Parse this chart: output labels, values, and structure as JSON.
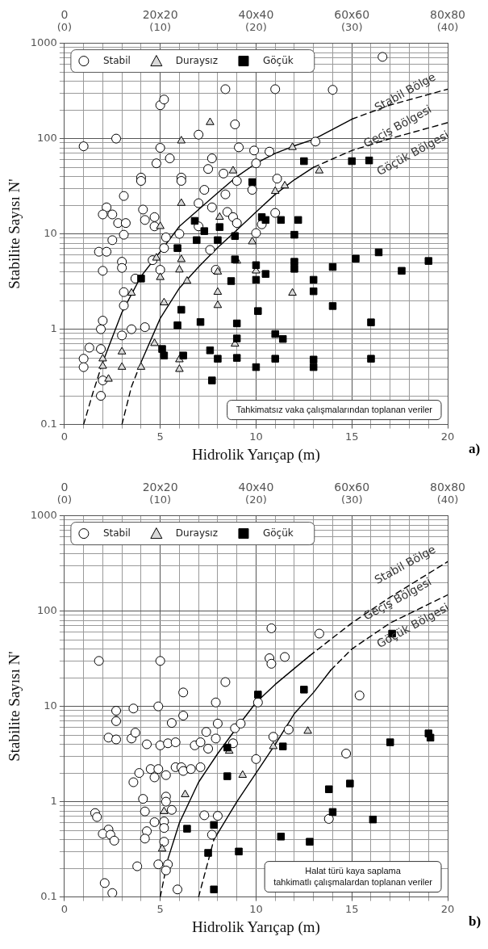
{
  "chart_data": [
    {
      "type": "scatter",
      "xlabel": "Hidrolik Yarıçap (m)",
      "ylabel": "Stabilite Sayısı N'",
      "log": "y",
      "grid": true,
      "legend": "top left",
      "xlim": [
        0,
        20
      ],
      "xticks": [
        0,
        {
          "value": 1,
          "label": null
        },
        {
          "value": 2,
          "label": null
        },
        {
          "value": 3,
          "label": null
        },
        {
          "value": 4,
          "label": null
        },
        5,
        {
          "value": 6,
          "label": null
        },
        {
          "value": 7,
          "label": null
        },
        {
          "value": 8,
          "label": null
        },
        {
          "value": 9,
          "label": null
        },
        10,
        {
          "value": 11,
          "label": null
        },
        {
          "value": 12,
          "label": null
        },
        {
          "value": 13,
          "label": null
        },
        {
          "value": 14,
          "label": null
        },
        15,
        {
          "value": 16,
          "label": null
        },
        {
          "value": 17,
          "label": null
        },
        {
          "value": 18,
          "label": null
        },
        {
          "value": 19,
          "label": null
        },
        20
      ],
      "x2lim": [
        0,
        40
      ],
      "x2ticks": [
        {
          "value": 0,
          "label": "(0)"
        },
        {
          "value": 10,
          "label": "(10)"
        },
        {
          "value": 20,
          "label": "(20)"
        },
        {
          "value": 30,
          "label": "(30)"
        },
        {
          "value": 40,
          "label": "(40)"
        }
      ],
      "ylim": [
        0.1,
        1000
      ],
      "yticks": [
        0.1,
        {
          "value": 0.2,
          "label": null
        },
        {
          "value": 0.3,
          "label": null
        },
        {
          "value": 0.4,
          "label": null
        },
        {
          "value": 0.5,
          "label": null
        },
        {
          "value": 0.6,
          "label": null
        },
        {
          "value": 0.7,
          "label": null
        },
        {
          "value": 0.8,
          "label": null
        },
        {
          "value": 0.9,
          "label": null
        },
        1,
        {
          "value": 2,
          "label": null
        },
        {
          "value": 3,
          "label": null
        },
        {
          "value": 4,
          "label": null
        },
        {
          "value": 5,
          "label": null
        },
        {
          "value": 6,
          "label": null
        },
        {
          "value": 7,
          "label": null
        },
        {
          "value": 8,
          "label": null
        },
        {
          "value": 9,
          "label": null
        },
        10,
        {
          "value": 20,
          "label": null
        },
        {
          "value": 30,
          "label": null
        },
        {
          "value": 40,
          "label": null
        },
        {
          "value": 50,
          "label": null
        },
        {
          "value": 60,
          "label": null
        },
        {
          "value": 70,
          "label": null
        },
        {
          "value": 80,
          "label": null
        },
        {
          "value": 90,
          "label": null
        },
        100,
        {
          "value": 200,
          "label": null
        },
        {
          "value": 300,
          "label": null
        },
        {
          "value": 400,
          "label": null
        },
        {
          "value": 500,
          "label": null
        },
        {
          "value": 600,
          "label": null
        },
        {
          "value": 700,
          "label": null
        },
        {
          "value": 800,
          "label": null
        },
        {
          "value": 900,
          "label": null
        },
        1000
      ],
      "series": [
        {
          "type": "line",
          "color": "#000000",
          "line_style": "dashed",
          "x": [
            1,
            1.5,
            2
          ],
          "values": [
            0.1,
            0.22,
            0.45
          ]
        },
        {
          "type": "line",
          "color": "#000000",
          "line_style": "solid",
          "x": [
            2,
            3,
            4,
            5,
            6,
            7,
            8,
            9,
            10,
            11,
            12,
            13,
            15
          ],
          "values": [
            0.45,
            1.5,
            3.6,
            6.5,
            12,
            18,
            27,
            40,
            55,
            70,
            84,
            98,
            160
          ]
        },
        {
          "type": "line",
          "color": "#000000",
          "line_style": "dashed",
          "x": [
            15,
            17,
            20
          ],
          "values": [
            160,
            225,
            330
          ]
        },
        {
          "type": "line",
          "color": "#000000",
          "line_style": "dashed",
          "x": [
            3,
            3.5,
            4
          ],
          "values": [
            0.1,
            0.25,
            0.45
          ]
        },
        {
          "type": "line",
          "color": "#000000",
          "line_style": "solid",
          "x": [
            4,
            5,
            6,
            7,
            8,
            9,
            10,
            11,
            12,
            13
          ],
          "values": [
            0.45,
            1.3,
            2.7,
            4.5,
            7.2,
            11,
            17,
            26,
            37,
            50
          ]
        },
        {
          "type": "line",
          "color": "#000000",
          "line_style": "dashed",
          "x": [
            13,
            15,
            17,
            20
          ],
          "values": [
            50,
            75,
            100,
            147
          ]
        },
        {
          "name": "Stabil",
          "marker": "circle",
          "color": "#ffffff",
          "x": [
            1.0,
            2.7,
            5.0,
            5.2,
            8.4,
            8.9,
            7.0,
            5.0,
            4.8,
            5.5,
            7.7,
            7.5,
            8.3,
            9.0,
            9.1,
            4.0,
            4.0,
            6.1,
            6.1,
            3.1,
            7.3,
            8.4,
            7.0,
            7.7,
            8.5,
            8.8,
            2.2,
            2.0,
            2.5,
            2.8,
            3.2,
            4.1,
            4.2,
            4.7,
            4.7,
            3.1,
            2.5,
            5.3,
            6.0,
            7.0,
            9.0,
            1.8,
            2.2,
            3.0,
            3.0,
            2.0,
            3.7,
            4.6,
            5.0,
            5.2,
            3.1,
            3.1,
            2.0,
            1.9,
            3.0,
            3.5,
            4.2,
            1.3,
            1.9,
            1.0,
            1.0,
            2.0,
            1.9,
            7.6,
            7.9,
            16.6,
            11.0,
            14.0,
            9.9,
            10.7,
            10.0,
            13.1,
            9.8,
            11.1,
            11.0,
            10.3,
            10.0
          ],
          "values": [
            83,
            100,
            224,
            257,
            330,
            141,
            110,
            80,
            55,
            62,
            62,
            48,
            43,
            36,
            81,
            39,
            36,
            39,
            36,
            25,
            29,
            26,
            21,
            19,
            17,
            15,
            19,
            16,
            16,
            13,
            13,
            18,
            14,
            15,
            12,
            9.8,
            8.6,
            9.2,
            10,
            12,
            13,
            6.5,
            6.5,
            5.1,
            4.4,
            4.1,
            3.4,
            5.3,
            4.2,
            7.1,
            2.45,
            1.77,
            1.23,
            1.0,
            0.86,
            1.0,
            1.05,
            0.64,
            0.62,
            0.49,
            0.4,
            0.29,
            0.2,
            6.8,
            4.2,
            720,
            330,
            325,
            75,
            73,
            55,
            93,
            29,
            38,
            16.6,
            12.6,
            10.2
          ]
        },
        {
          "name": "Duraysız",
          "marker": "triangle",
          "color": "#d9d9d9",
          "x": [
            4.8,
            5.0,
            6.0,
            6.1,
            6.4,
            8.0,
            8.0,
            8.0,
            5.2,
            3.5,
            3.0,
            3.0,
            4.0,
            4.7,
            2.0,
            2.0,
            2.3,
            6.0,
            6.0,
            8.9,
            8.8,
            11.9,
            13.3,
            11.0,
            11.5,
            9.8,
            9.0,
            10.0,
            11.9,
            6.1,
            7.6,
            6.1,
            8.1,
            5.0
          ],
          "values": [
            5.6,
            3.5,
            4.2,
            5.4,
            3.2,
            4.0,
            2.45,
            1.78,
            1.9,
            2.4,
            0.58,
            0.4,
            0.4,
            0.71,
            0.49,
            0.41,
            0.3,
            0.48,
            0.38,
            0.7,
            46,
            81,
            46,
            28,
            32,
            8.3,
            5.2,
            4.1,
            2.4,
            95,
            148,
            21,
            15,
            12
          ]
        },
        {
          "name": "Göçük",
          "marker": "square",
          "color": "#000000",
          "x": [
            4.0,
            5.9,
            6.9,
            6.8,
            7.3,
            8.1,
            8.0,
            8.9,
            8.9,
            8.7,
            6.1,
            5.9,
            7.1,
            9.0,
            9.0,
            5.1,
            5.2,
            6.2,
            7.6,
            8.0,
            9.0,
            7.7,
            12.5,
            15.0,
            15.9,
            9.8,
            10.3,
            10.5,
            11.3,
            12.2,
            12.0,
            10.0,
            10.0,
            10.5,
            12.0,
            12.0,
            13.0,
            13.0,
            14.0,
            15.2,
            16.4,
            17.6,
            19.0,
            14.0,
            10.1,
            16.0,
            11.0,
            11.4,
            11.0,
            10.0,
            13.0,
            13.0,
            16.0
          ],
          "values": [
            3.4,
            7.1,
            8.6,
            13.7,
            10.7,
            11.8,
            8.6,
            9.5,
            5.4,
            3.2,
            1.6,
            1.1,
            1.19,
            1.15,
            0.8,
            0.62,
            0.53,
            0.53,
            0.6,
            0.49,
            0.5,
            0.29,
            58,
            58,
            59,
            35,
            15,
            14,
            14,
            14,
            9.8,
            4.7,
            3.3,
            3.8,
            5.1,
            4.3,
            3.3,
            2.5,
            4.5,
            5.5,
            6.4,
            4.1,
            5.2,
            1.75,
            1.55,
            1.18,
            0.89,
            0.79,
            0.49,
            0.4,
            0.48,
            0.4,
            0.49
          ]
        }
      ],
      "annotations": [
        "Stabil Bölge",
        "Geçiş Bölgesi",
        "Göçük Bölgesi",
        "0",
        "20x20",
        "40x40",
        "60x60",
        "80x80",
        "Tahkimatsız vaka çalışmalarından toplanan veriler",
        "a)"
      ]
    },
    {
      "type": "scatter",
      "xlabel": "Hidrolik Yarıçap (m)",
      "ylabel": "Stabilite Sayısı N'",
      "log": "y",
      "grid": true,
      "legend": "top left",
      "xlim": [
        0,
        20
      ],
      "xticks": [
        0,
        {
          "value": 1,
          "label": null
        },
        {
          "value": 2,
          "label": null
        },
        {
          "value": 3,
          "label": null
        },
        {
          "value": 4,
          "label": null
        },
        5,
        {
          "value": 6,
          "label": null
        },
        {
          "value": 7,
          "label": null
        },
        {
          "value": 8,
          "label": null
        },
        {
          "value": 9,
          "label": null
        },
        10,
        {
          "value": 11,
          "label": null
        },
        {
          "value": 12,
          "label": null
        },
        {
          "value": 13,
          "label": null
        },
        {
          "value": 14,
          "label": null
        },
        15,
        {
          "value": 16,
          "label": null
        },
        {
          "value": 17,
          "label": null
        },
        {
          "value": 18,
          "label": null
        },
        {
          "value": 19,
          "label": null
        },
        20
      ],
      "x2lim": [
        0,
        40
      ],
      "x2ticks": [
        {
          "value": 0,
          "label": "(0)"
        },
        {
          "value": 10,
          "label": "(10)"
        },
        {
          "value": 20,
          "label": "(20)"
        },
        {
          "value": 30,
          "label": "(30)"
        },
        {
          "value": 40,
          "label": "(40)"
        }
      ],
      "ylim": [
        0.1,
        1000
      ],
      "yticks": [
        0.1,
        {
          "value": 0.2,
          "label": null
        },
        {
          "value": 0.3,
          "label": null
        },
        {
          "value": 0.4,
          "label": null
        },
        {
          "value": 0.5,
          "label": null
        },
        {
          "value": 0.6,
          "label": null
        },
        {
          "value": 0.7,
          "label": null
        },
        {
          "value": 0.8,
          "label": null
        },
        {
          "value": 0.9,
          "label": null
        },
        1,
        {
          "value": 2,
          "label": null
        },
        {
          "value": 3,
          "label": null
        },
        {
          "value": 4,
          "label": null
        },
        {
          "value": 5,
          "label": null
        },
        {
          "value": 6,
          "label": null
        },
        {
          "value": 7,
          "label": null
        },
        {
          "value": 8,
          "label": null
        },
        {
          "value": 9,
          "label": null
        },
        10,
        {
          "value": 20,
          "label": null
        },
        {
          "value": 30,
          "label": null
        },
        {
          "value": 40,
          "label": null
        },
        {
          "value": 50,
          "label": null
        },
        {
          "value": 60,
          "label": null
        },
        {
          "value": 70,
          "label": null
        },
        {
          "value": 80,
          "label": null
        },
        {
          "value": 90,
          "label": null
        },
        100,
        {
          "value": 200,
          "label": null
        },
        {
          "value": 300,
          "label": null
        },
        {
          "value": 400,
          "label": null
        },
        {
          "value": 500,
          "label": null
        },
        {
          "value": 600,
          "label": null
        },
        {
          "value": 700,
          "label": null
        },
        {
          "value": 800,
          "label": null
        },
        {
          "value": 900,
          "label": null
        },
        1000
      ],
      "series": [
        {
          "type": "line",
          "color": "#000000",
          "line_style": "dashed",
          "x": [
            5,
            5.4
          ],
          "values": [
            0.1,
            0.25
          ]
        },
        {
          "type": "line",
          "color": "#000000",
          "line_style": "solid",
          "x": [
            5.4,
            6,
            7,
            8,
            9,
            10,
            11,
            12,
            12.8
          ],
          "values": [
            0.25,
            0.6,
            1.6,
            3.2,
            6,
            11,
            17,
            25,
            34
          ]
        },
        {
          "type": "line",
          "color": "#000000",
          "line_style": "dashed",
          "x": [
            12.8,
            15,
            17,
            20
          ],
          "values": [
            34,
            75,
            140,
            330
          ]
        },
        {
          "type": "line",
          "color": "#000000",
          "line_style": "dashed",
          "x": [
            7,
            7.8
          ],
          "values": [
            0.1,
            0.4
          ]
        },
        {
          "type": "line",
          "color": "#000000",
          "line_style": "solid",
          "x": [
            7.8,
            9,
            10,
            11,
            12,
            13,
            13.9
          ],
          "values": [
            0.4,
            1.0,
            2.0,
            4,
            8.4,
            14,
            24
          ]
        },
        {
          "type": "line",
          "color": "#000000",
          "line_style": "dashed",
          "x": [
            13.9,
            15,
            17,
            20
          ],
          "values": [
            24,
            40,
            75,
            148
          ]
        },
        {
          "name": "Stabil",
          "marker": "circle",
          "color": "#ffffff",
          "x": [
            1.8,
            5.0,
            6.2,
            8.4,
            4.9,
            7.9,
            2.7,
            3.6,
            6.2,
            2.7,
            5.6,
            8.0,
            7.4,
            2.3,
            2.7,
            3.5,
            3.7,
            4.3,
            5.0,
            5.4,
            5.8,
            6.8,
            7.1,
            7.5,
            7.9,
            8.9,
            9.2,
            8.8,
            3.9,
            3.6,
            4.5,
            4.7,
            4.9,
            5.3,
            5.8,
            6.1,
            6.2,
            6.6,
            7.1,
            4.1,
            5.3,
            5.3,
            4.2,
            5.6,
            5.2,
            4.7,
            5.2,
            1.6,
            1.7,
            2.3,
            2.0,
            2.4,
            2.6,
            4.3,
            4.2,
            5.2,
            7.3,
            8.0,
            7.7,
            3.8,
            4.9,
            5.4,
            5.3,
            2.1,
            2.5,
            5.9,
            10.8,
            13.3,
            10.7,
            10.8,
            11.5,
            15.4,
            10.1,
            11.7,
            10.9,
            10.0,
            14.7,
            13.8
          ],
          "values": [
            30,
            30,
            14,
            18,
            10,
            11,
            9,
            9.5,
            8,
            7.0,
            6.7,
            6.6,
            5.4,
            4.7,
            4.5,
            4.6,
            5.3,
            4.0,
            3.9,
            4.1,
            4.2,
            3.9,
            4.2,
            3.6,
            4.6,
            5.9,
            6.6,
            4.1,
            2.0,
            1.6,
            2.2,
            1.8,
            2.2,
            1.9,
            2.3,
            2.3,
            2.1,
            2.2,
            2.3,
            1.07,
            1.13,
            1.0,
            0.79,
            0.82,
            0.62,
            0.61,
            0.53,
            0.76,
            0.69,
            0.51,
            0.46,
            0.45,
            0.39,
            0.49,
            0.41,
            0.38,
            0.72,
            0.71,
            0.45,
            0.21,
            0.22,
            0.22,
            0.19,
            0.14,
            0.11,
            0.12,
            66,
            58,
            32,
            28,
            33,
            13,
            11,
            5.7,
            4.8,
            2.8,
            3.2,
            0.66
          ]
        },
        {
          "name": "Duraysız",
          "marker": "triangle",
          "color": "#d9d9d9",
          "x": [
            5.2,
            5.1,
            6.3,
            9.3,
            8.6,
            12.7,
            10.9
          ],
          "values": [
            0.79,
            0.32,
            1.19,
            1.9,
            3.4,
            5.5,
            3.8
          ]
        },
        {
          "name": "Göçük",
          "marker": "square",
          "color": "#000000",
          "x": [
            8.5,
            8.5,
            6.4,
            7.8,
            7.5,
            9.1,
            7.8,
            10.1,
            12.5,
            17.1,
            19.0,
            19.1,
            17.0,
            11.4,
            13.8,
            14.9,
            14.0,
            16.1,
            11.3,
            12.8
          ],
          "values": [
            3.7,
            1.85,
            0.52,
            0.57,
            0.29,
            0.3,
            0.12,
            13.3,
            15,
            58,
            5.2,
            4.7,
            4.2,
            3.8,
            1.35,
            1.55,
            0.78,
            0.65,
            0.43,
            0.38
          ]
        }
      ],
      "annotations": [
        "Stabil Bölge",
        "Geçiş Bölgesi",
        "Göçük Bölgesi",
        "0",
        "20x20",
        "40x40",
        "60x60",
        "80x80",
        "Halat türü kaya saplama tahkimatlı çalışmalardan toplanan veriler",
        "b)"
      ]
    }
  ]
}
